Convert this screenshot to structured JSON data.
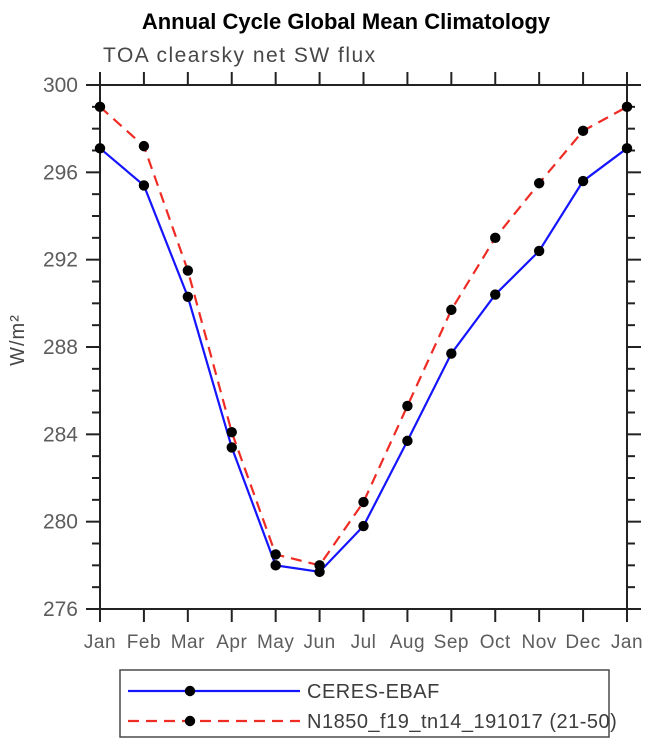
{
  "chart_data": {
    "type": "line",
    "title": "Annual Cycle Global Mean Climatology",
    "subtitle": "TOA clearsky net SW flux",
    "xlabel": "",
    "ylabel": "W/m²",
    "ylim": [
      276,
      300
    ],
    "y_major_ticks": [
      276,
      280,
      284,
      288,
      292,
      296,
      300
    ],
    "y_minor_tick_step": 1,
    "categories": [
      "Jan",
      "Feb",
      "Mar",
      "Apr",
      "May",
      "Jun",
      "Jul",
      "Aug",
      "Sep",
      "Oct",
      "Nov",
      "Dec",
      "Jan"
    ],
    "series": [
      {
        "name": "CERES-EBAF",
        "line_style": "solid",
        "color": "#1515ff",
        "marker": "filled-circle",
        "marker_color": "#000000",
        "values": [
          297.1,
          295.4,
          290.3,
          283.4,
          278.0,
          277.7,
          279.8,
          283.7,
          287.7,
          290.4,
          292.4,
          295.6,
          297.1
        ]
      },
      {
        "name": "N1850_f19_tn14_191017 (21-50)",
        "line_style": "dashed",
        "color": "#ee2c24",
        "marker": "filled-circle",
        "marker_color": "#000000",
        "values": [
          299.0,
          297.2,
          291.5,
          284.1,
          278.5,
          278.0,
          280.9,
          285.3,
          289.7,
          293.0,
          295.5,
          297.9,
          299.0
        ]
      }
    ],
    "legend_position": "bottom",
    "grid": false,
    "colors": {
      "axis": "#222222",
      "tick_labels": "#5c5c5c",
      "title": "#000000",
      "subtitle": "#474747"
    }
  }
}
